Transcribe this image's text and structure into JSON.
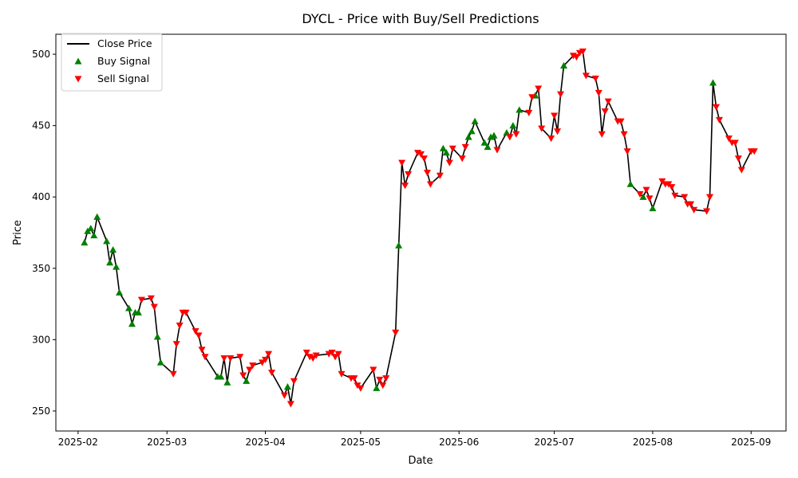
{
  "chart_data": {
    "type": "line",
    "title": "DYCL - Price with Buy/Sell Predictions",
    "xlabel": "Date",
    "ylabel": "Price",
    "x_range": [
      "2025-01-25",
      "2025-09-12"
    ],
    "ylim": [
      236,
      514
    ],
    "x_ticks": [
      {
        "date": "2025-02-01",
        "label": "2025-02"
      },
      {
        "date": "2025-03-01",
        "label": "2025-03"
      },
      {
        "date": "2025-04-01",
        "label": "2025-04"
      },
      {
        "date": "2025-05-01",
        "label": "2025-05"
      },
      {
        "date": "2025-06-01",
        "label": "2025-06"
      },
      {
        "date": "2025-07-01",
        "label": "2025-07"
      },
      {
        "date": "2025-08-01",
        "label": "2025-08"
      },
      {
        "date": "2025-09-01",
        "label": "2025-09"
      }
    ],
    "y_ticks": [
      250,
      300,
      350,
      400,
      450,
      500
    ],
    "grid": false,
    "legend_position": "upper left",
    "legend": [
      {
        "label": "Close Price",
        "kind": "line",
        "color": "#000000"
      },
      {
        "label": "Buy Signal",
        "kind": "triangle-up",
        "color": "#008000"
      },
      {
        "label": "Sell Signal",
        "kind": "triangle-down",
        "color": "#ff0000"
      }
    ],
    "series": [
      {
        "name": "Close Price",
        "color": "#000000",
        "points": [
          [
            "2025-02-03",
            368
          ],
          [
            "2025-02-04",
            376
          ],
          [
            "2025-02-05",
            378
          ],
          [
            "2025-02-06",
            373
          ],
          [
            "2025-02-07",
            386
          ],
          [
            "2025-02-10",
            369
          ],
          [
            "2025-02-11",
            354
          ],
          [
            "2025-02-12",
            363
          ],
          [
            "2025-02-13",
            351
          ],
          [
            "2025-02-14",
            333
          ],
          [
            "2025-02-17",
            322
          ],
          [
            "2025-02-18",
            311
          ],
          [
            "2025-02-19",
            319
          ],
          [
            "2025-02-20",
            319
          ],
          [
            "2025-02-21",
            328
          ],
          [
            "2025-02-24",
            329
          ],
          [
            "2025-02-25",
            323
          ],
          [
            "2025-02-26",
            302
          ],
          [
            "2025-02-27",
            284
          ],
          [
            "2025-03-03",
            276
          ],
          [
            "2025-03-04",
            297
          ],
          [
            "2025-03-05",
            310
          ],
          [
            "2025-03-06",
            319
          ],
          [
            "2025-03-07",
            319
          ],
          [
            "2025-03-10",
            306
          ],
          [
            "2025-03-11",
            303
          ],
          [
            "2025-03-12",
            293
          ],
          [
            "2025-03-13",
            288
          ],
          [
            "2025-03-17",
            274
          ],
          [
            "2025-03-18",
            274
          ],
          [
            "2025-03-19",
            287
          ],
          [
            "2025-03-20",
            270
          ],
          [
            "2025-03-21",
            287
          ],
          [
            "2025-03-24",
            288
          ],
          [
            "2025-03-25",
            275
          ],
          [
            "2025-03-26",
            271
          ],
          [
            "2025-03-27",
            279
          ],
          [
            "2025-03-28",
            282
          ],
          [
            "2025-03-31",
            284
          ],
          [
            "2025-04-01",
            286
          ],
          [
            "2025-04-02",
            290
          ],
          [
            "2025-04-03",
            277
          ],
          [
            "2025-04-07",
            261
          ],
          [
            "2025-04-08",
            267
          ],
          [
            "2025-04-09",
            255
          ],
          [
            "2025-04-10",
            271
          ],
          [
            "2025-04-14",
            291
          ],
          [
            "2025-04-15",
            288
          ],
          [
            "2025-04-16",
            287
          ],
          [
            "2025-04-17",
            289
          ],
          [
            "2025-04-21",
            290
          ],
          [
            "2025-04-22",
            291
          ],
          [
            "2025-04-23",
            288
          ],
          [
            "2025-04-24",
            290
          ],
          [
            "2025-04-25",
            276
          ],
          [
            "2025-04-28",
            273
          ],
          [
            "2025-04-29",
            273
          ],
          [
            "2025-04-30",
            268
          ],
          [
            "2025-05-01",
            266
          ],
          [
            "2025-05-05",
            279
          ],
          [
            "2025-05-06",
            266
          ],
          [
            "2025-05-07",
            272
          ],
          [
            "2025-05-08",
            268
          ],
          [
            "2025-05-09",
            273
          ],
          [
            "2025-05-12",
            305
          ],
          [
            "2025-05-13",
            366
          ],
          [
            "2025-05-14",
            424
          ],
          [
            "2025-05-15",
            408
          ],
          [
            "2025-05-16",
            416
          ],
          [
            "2025-05-19",
            431
          ],
          [
            "2025-05-20",
            430
          ],
          [
            "2025-05-21",
            427
          ],
          [
            "2025-05-22",
            417
          ],
          [
            "2025-05-23",
            409
          ],
          [
            "2025-05-26",
            415
          ],
          [
            "2025-05-27",
            434
          ],
          [
            "2025-05-28",
            431
          ],
          [
            "2025-05-29",
            424
          ],
          [
            "2025-05-30",
            434
          ],
          [
            "2025-06-02",
            427
          ],
          [
            "2025-06-03",
            435
          ],
          [
            "2025-06-04",
            442
          ],
          [
            "2025-06-05",
            446
          ],
          [
            "2025-06-06",
            453
          ],
          [
            "2025-06-09",
            438
          ],
          [
            "2025-06-10",
            435
          ],
          [
            "2025-06-11",
            442
          ],
          [
            "2025-06-12",
            443
          ],
          [
            "2025-06-13",
            433
          ],
          [
            "2025-06-16",
            445
          ],
          [
            "2025-06-17",
            442
          ],
          [
            "2025-06-18",
            450
          ],
          [
            "2025-06-19",
            444
          ],
          [
            "2025-06-20",
            461
          ],
          [
            "2025-06-23",
            459
          ],
          [
            "2025-06-24",
            470
          ],
          [
            "2025-06-25",
            471
          ],
          [
            "2025-06-26",
            476
          ],
          [
            "2025-06-27",
            448
          ],
          [
            "2025-06-30",
            441
          ],
          [
            "2025-07-01",
            457
          ],
          [
            "2025-07-02",
            446
          ],
          [
            "2025-07-03",
            472
          ],
          [
            "2025-07-04",
            492
          ],
          [
            "2025-07-07",
            499
          ],
          [
            "2025-07-08",
            498
          ],
          [
            "2025-07-09",
            501
          ],
          [
            "2025-07-10",
            502
          ],
          [
            "2025-07-11",
            485
          ],
          [
            "2025-07-14",
            483
          ],
          [
            "2025-07-15",
            473
          ],
          [
            "2025-07-16",
            444
          ],
          [
            "2025-07-17",
            460
          ],
          [
            "2025-07-18",
            467
          ],
          [
            "2025-07-21",
            453
          ],
          [
            "2025-07-22",
            453
          ],
          [
            "2025-07-23",
            444
          ],
          [
            "2025-07-24",
            432
          ],
          [
            "2025-07-25",
            409
          ],
          [
            "2025-07-28",
            402
          ],
          [
            "2025-07-29",
            400
          ],
          [
            "2025-07-30",
            405
          ],
          [
            "2025-07-31",
            399
          ],
          [
            "2025-08-01",
            392
          ],
          [
            "2025-08-04",
            411
          ],
          [
            "2025-08-05",
            409
          ],
          [
            "2025-08-06",
            409
          ],
          [
            "2025-08-07",
            407
          ],
          [
            "2025-08-08",
            401
          ],
          [
            "2025-08-11",
            400
          ],
          [
            "2025-08-12",
            395
          ],
          [
            "2025-08-13",
            395
          ],
          [
            "2025-08-14",
            391
          ],
          [
            "2025-08-18",
            390
          ],
          [
            "2025-08-19",
            400
          ],
          [
            "2025-08-20",
            480
          ],
          [
            "2025-08-21",
            463
          ],
          [
            "2025-08-22",
            454
          ],
          [
            "2025-08-25",
            441
          ],
          [
            "2025-08-26",
            438
          ],
          [
            "2025-08-27",
            438
          ],
          [
            "2025-08-28",
            427
          ],
          [
            "2025-08-29",
            419
          ],
          [
            "2025-09-01",
            432
          ],
          [
            "2025-09-02",
            432
          ]
        ]
      }
    ],
    "buy_signals": [
      [
        "2025-02-03",
        368
      ],
      [
        "2025-02-04",
        376
      ],
      [
        "2025-02-05",
        378
      ],
      [
        "2025-02-06",
        373
      ],
      [
        "2025-02-07",
        386
      ],
      [
        "2025-02-10",
        369
      ],
      [
        "2025-02-11",
        354
      ],
      [
        "2025-02-12",
        363
      ],
      [
        "2025-02-13",
        351
      ],
      [
        "2025-02-14",
        333
      ],
      [
        "2025-02-17",
        322
      ],
      [
        "2025-02-18",
        311
      ],
      [
        "2025-02-19",
        319
      ],
      [
        "2025-02-20",
        319
      ],
      [
        "2025-02-26",
        302
      ],
      [
        "2025-02-27",
        284
      ],
      [
        "2025-03-17",
        274
      ],
      [
        "2025-03-18",
        274
      ],
      [
        "2025-03-20",
        270
      ],
      [
        "2025-03-26",
        271
      ],
      [
        "2025-04-08",
        267
      ],
      [
        "2025-05-06",
        266
      ],
      [
        "2025-05-13",
        366
      ],
      [
        "2025-05-27",
        434
      ],
      [
        "2025-05-28",
        431
      ],
      [
        "2025-06-04",
        442
      ],
      [
        "2025-06-05",
        446
      ],
      [
        "2025-06-06",
        453
      ],
      [
        "2025-06-09",
        438
      ],
      [
        "2025-06-10",
        435
      ],
      [
        "2025-06-11",
        442
      ],
      [
        "2025-06-12",
        443
      ],
      [
        "2025-06-16",
        445
      ],
      [
        "2025-06-18",
        450
      ],
      [
        "2025-06-20",
        461
      ],
      [
        "2025-06-25",
        471
      ],
      [
        "2025-07-04",
        492
      ],
      [
        "2025-07-25",
        409
      ],
      [
        "2025-07-29",
        400
      ],
      [
        "2025-08-01",
        392
      ],
      [
        "2025-08-20",
        480
      ]
    ],
    "sell_signals": [
      [
        "2025-02-21",
        328
      ],
      [
        "2025-02-24",
        329
      ],
      [
        "2025-02-25",
        323
      ],
      [
        "2025-03-03",
        276
      ],
      [
        "2025-03-04",
        297
      ],
      [
        "2025-03-05",
        310
      ],
      [
        "2025-03-06",
        319
      ],
      [
        "2025-03-07",
        319
      ],
      [
        "2025-03-10",
        306
      ],
      [
        "2025-03-11",
        303
      ],
      [
        "2025-03-12",
        293
      ],
      [
        "2025-03-13",
        288
      ],
      [
        "2025-03-19",
        287
      ],
      [
        "2025-03-21",
        287
      ],
      [
        "2025-03-24",
        288
      ],
      [
        "2025-03-25",
        275
      ],
      [
        "2025-03-27",
        279
      ],
      [
        "2025-03-28",
        282
      ],
      [
        "2025-03-31",
        284
      ],
      [
        "2025-04-01",
        286
      ],
      [
        "2025-04-02",
        290
      ],
      [
        "2025-04-03",
        277
      ],
      [
        "2025-04-07",
        261
      ],
      [
        "2025-04-09",
        255
      ],
      [
        "2025-04-10",
        271
      ],
      [
        "2025-04-14",
        291
      ],
      [
        "2025-04-15",
        288
      ],
      [
        "2025-04-16",
        287
      ],
      [
        "2025-04-17",
        289
      ],
      [
        "2025-04-21",
        290
      ],
      [
        "2025-04-22",
        291
      ],
      [
        "2025-04-23",
        288
      ],
      [
        "2025-04-24",
        290
      ],
      [
        "2025-04-25",
        276
      ],
      [
        "2025-04-28",
        273
      ],
      [
        "2025-04-29",
        273
      ],
      [
        "2025-04-30",
        268
      ],
      [
        "2025-05-01",
        266
      ],
      [
        "2025-05-05",
        279
      ],
      [
        "2025-05-07",
        272
      ],
      [
        "2025-05-08",
        268
      ],
      [
        "2025-05-09",
        273
      ],
      [
        "2025-05-12",
        305
      ],
      [
        "2025-05-14",
        424
      ],
      [
        "2025-05-15",
        408
      ],
      [
        "2025-05-16",
        416
      ],
      [
        "2025-05-19",
        431
      ],
      [
        "2025-05-20",
        430
      ],
      [
        "2025-05-21",
        427
      ],
      [
        "2025-05-22",
        417
      ],
      [
        "2025-05-23",
        409
      ],
      [
        "2025-05-26",
        415
      ],
      [
        "2025-05-29",
        424
      ],
      [
        "2025-05-30",
        434
      ],
      [
        "2025-06-02",
        427
      ],
      [
        "2025-06-03",
        435
      ],
      [
        "2025-06-13",
        433
      ],
      [
        "2025-06-17",
        442
      ],
      [
        "2025-06-19",
        444
      ],
      [
        "2025-06-23",
        459
      ],
      [
        "2025-06-24",
        470
      ],
      [
        "2025-06-26",
        476
      ],
      [
        "2025-06-27",
        448
      ],
      [
        "2025-06-30",
        441
      ],
      [
        "2025-07-01",
        457
      ],
      [
        "2025-07-02",
        446
      ],
      [
        "2025-07-03",
        472
      ],
      [
        "2025-07-07",
        499
      ],
      [
        "2025-07-08",
        498
      ],
      [
        "2025-07-09",
        501
      ],
      [
        "2025-07-10",
        502
      ],
      [
        "2025-07-11",
        485
      ],
      [
        "2025-07-14",
        483
      ],
      [
        "2025-07-15",
        473
      ],
      [
        "2025-07-16",
        444
      ],
      [
        "2025-07-17",
        460
      ],
      [
        "2025-07-18",
        467
      ],
      [
        "2025-07-21",
        453
      ],
      [
        "2025-07-22",
        453
      ],
      [
        "2025-07-23",
        444
      ],
      [
        "2025-07-24",
        432
      ],
      [
        "2025-07-28",
        402
      ],
      [
        "2025-07-30",
        405
      ],
      [
        "2025-07-31",
        399
      ],
      [
        "2025-08-04",
        411
      ],
      [
        "2025-08-05",
        409
      ],
      [
        "2025-08-06",
        409
      ],
      [
        "2025-08-07",
        407
      ],
      [
        "2025-08-08",
        401
      ],
      [
        "2025-08-11",
        400
      ],
      [
        "2025-08-12",
        395
      ],
      [
        "2025-08-13",
        395
      ],
      [
        "2025-08-14",
        391
      ],
      [
        "2025-08-18",
        390
      ],
      [
        "2025-08-19",
        400
      ],
      [
        "2025-08-21",
        463
      ],
      [
        "2025-08-22",
        454
      ],
      [
        "2025-08-25",
        441
      ],
      [
        "2025-08-26",
        438
      ],
      [
        "2025-08-27",
        438
      ],
      [
        "2025-08-28",
        427
      ],
      [
        "2025-08-29",
        419
      ],
      [
        "2025-09-01",
        432
      ],
      [
        "2025-09-02",
        432
      ]
    ]
  }
}
